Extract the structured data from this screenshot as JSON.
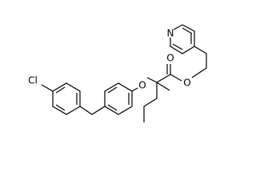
{
  "atoms": [
    {
      "label": "N"
    },
    {
      "label": "O"
    },
    {
      "label": "O"
    },
    {
      "label": "O"
    },
    {
      "label": "Cl"
    }
  ]
}
